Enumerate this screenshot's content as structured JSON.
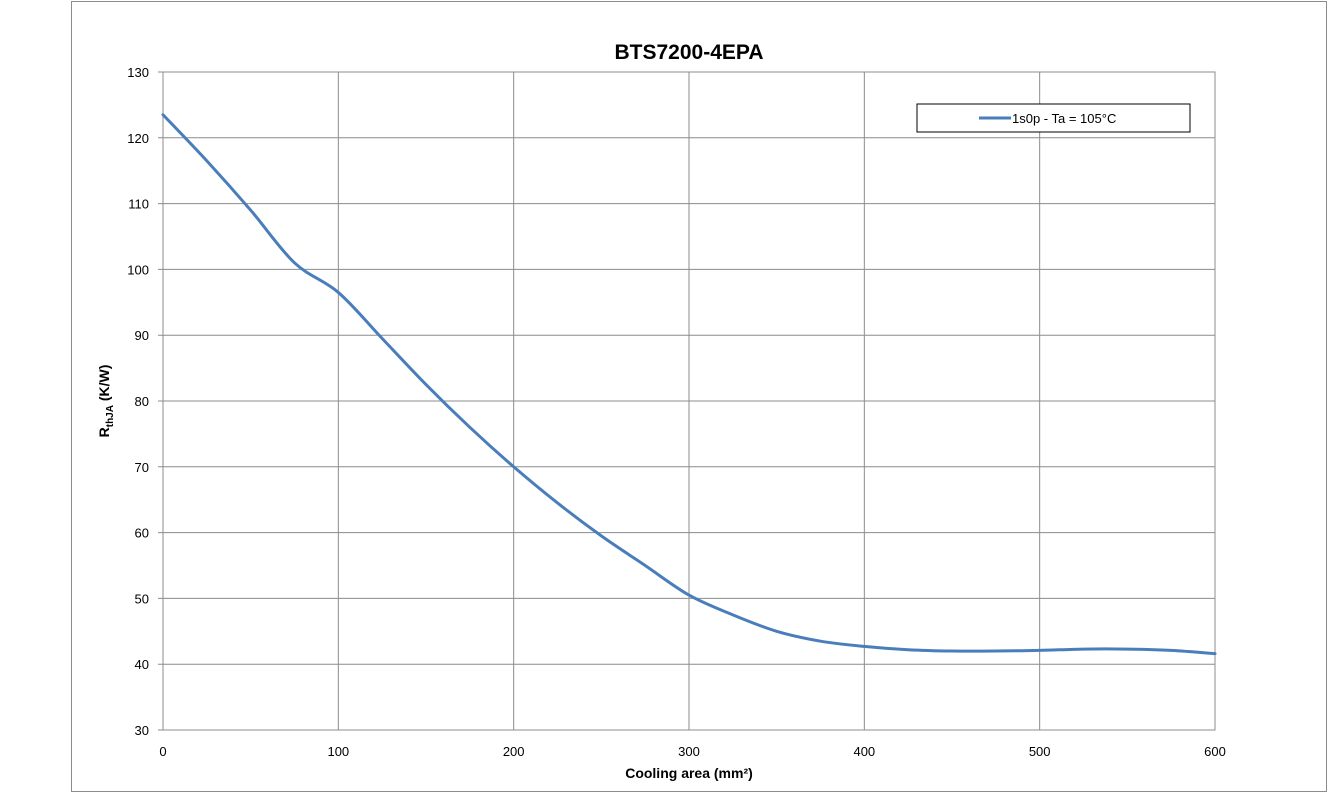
{
  "chart_data": {
    "type": "line",
    "title": "BTS7200-4EPA",
    "xlabel": "Cooling area (mm²)",
    "ylabel": {
      "main": "R",
      "subscript": "thJA",
      "suffix": " (K/W)"
    },
    "xlim": [
      0,
      600
    ],
    "ylim": [
      30,
      130
    ],
    "xticks": [
      0,
      100,
      200,
      300,
      400,
      500,
      600
    ],
    "yticks": [
      30,
      40,
      50,
      60,
      70,
      80,
      90,
      100,
      110,
      120,
      130
    ],
    "grid": true,
    "legend_position": "top-right",
    "series": [
      {
        "name": "1s0p - Ta = 105°C",
        "color": "#4a7ebb",
        "x": [
          0,
          25,
          50,
          75,
          100,
          125,
          150,
          175,
          200,
          225,
          250,
          275,
          300,
          325,
          350,
          375,
          400,
          425,
          450,
          475,
          500,
          525,
          550,
          575,
          600
        ],
        "y": [
          123.5,
          116.5,
          109.0,
          101.0,
          96.5,
          89.5,
          82.5,
          76.0,
          70.0,
          64.5,
          59.5,
          55.0,
          50.5,
          47.5,
          45.0,
          43.5,
          42.7,
          42.2,
          42.0,
          42.0,
          42.1,
          42.3,
          42.3,
          42.1,
          41.6
        ]
      }
    ]
  }
}
